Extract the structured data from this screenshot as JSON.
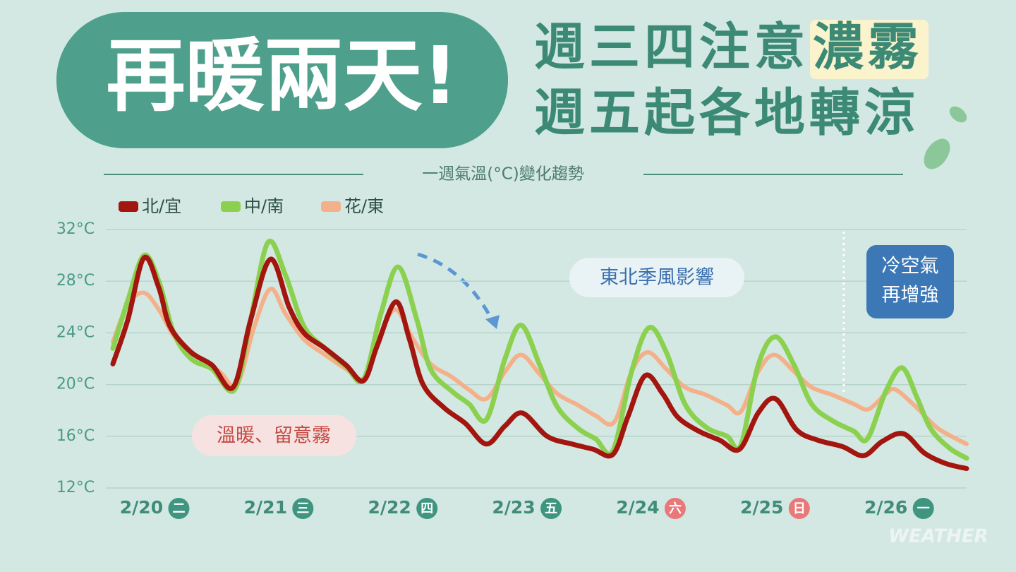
{
  "chart_data": {
    "type": "line",
    "title": "再暖兩天!",
    "headline_line1": "週三四注意",
    "headline_highlight": "濃霧",
    "headline_line2": "週五起各地轉涼",
    "subtitle": "一週氣溫(°C)變化趨勢",
    "xlim": [
      -0.23,
      6.65
    ],
    "xticks": [
      {
        "value": 0,
        "label": "2/20"
      },
      {
        "value": 1,
        "label": "2/21"
      },
      {
        "value": 2,
        "label": "2/22"
      },
      {
        "value": 3,
        "label": "2/23"
      },
      {
        "value": 4,
        "label": "2/24"
      },
      {
        "value": 5,
        "label": "2/25"
      },
      {
        "value": 6,
        "label": "2/26"
      }
    ],
    "x_badges": [
      {
        "text": "二",
        "color": "#3f9580"
      },
      {
        "text": "三",
        "color": "#3f9580"
      },
      {
        "text": "四",
        "color": "#3f9580"
      },
      {
        "text": "五",
        "color": "#3f9580"
      },
      {
        "text": "六",
        "color": "#e8787a"
      },
      {
        "text": "日",
        "color": "#e8787a"
      },
      {
        "text": "一",
        "color": "#3f9580"
      }
    ],
    "ylim": [
      12,
      32
    ],
    "yticks": [
      {
        "value": 12,
        "label": "12°C"
      },
      {
        "value": 16,
        "label": "16°C"
      },
      {
        "value": 20,
        "label": "20°C"
      },
      {
        "value": 24,
        "label": "24°C"
      },
      {
        "value": 28,
        "label": "28°C"
      },
      {
        "value": 32,
        "label": "32°C"
      }
    ],
    "grid": true,
    "divider_x": 5.66,
    "series": [
      {
        "name": "北/宜",
        "color": "#a3150f",
        "x": [
          -0.23,
          -0.11,
          0.02,
          0.14,
          0.23,
          0.4,
          0.57,
          0.74,
          0.88,
          1.04,
          1.19,
          1.31,
          1.48,
          1.65,
          1.79,
          1.9,
          2.05,
          2.16,
          2.27,
          2.44,
          2.61,
          2.78,
          2.93,
          3.07,
          3.27,
          3.47,
          3.64,
          3.8,
          3.92,
          4.06,
          4.2,
          4.32,
          4.49,
          4.66,
          4.82,
          4.97,
          5.11,
          5.28,
          5.45,
          5.65,
          5.82,
          5.97,
          6.14,
          6.31,
          6.48,
          6.65
        ],
        "values": [
          21.6,
          25,
          29.8,
          27.5,
          24.5,
          22.5,
          21.5,
          19.8,
          25,
          29.7,
          26,
          24,
          22.8,
          21.5,
          20.3,
          23,
          26.4,
          23.5,
          20,
          18.2,
          17,
          15.4,
          16.8,
          17.8,
          16,
          15.4,
          15,
          14.6,
          17.5,
          20.7,
          19.3,
          17.5,
          16.4,
          15.7,
          15,
          17.8,
          18.9,
          16.5,
          15.7,
          15.2,
          14.5,
          15.6,
          16.2,
          14.7,
          13.9,
          13.5
        ]
      },
      {
        "name": "中/南",
        "color": "#8bd14f",
        "x": [
          -0.23,
          -0.11,
          0.02,
          0.14,
          0.26,
          0.4,
          0.57,
          0.75,
          0.88,
          1.02,
          1.16,
          1.31,
          1.48,
          1.65,
          1.79,
          1.93,
          2.07,
          2.22,
          2.33,
          2.5,
          2.64,
          2.78,
          2.93,
          3.06,
          3.21,
          3.35,
          3.52,
          3.66,
          3.8,
          3.95,
          4.09,
          4.23,
          4.38,
          4.55,
          4.72,
          4.83,
          4.97,
          5.11,
          5.26,
          5.4,
          5.57,
          5.74,
          5.85,
          6.0,
          6.13,
          6.25,
          6.36,
          6.51,
          6.65
        ],
        "values": [
          22.8,
          26.5,
          30,
          28,
          24,
          22,
          21.2,
          19.6,
          25,
          31,
          28.5,
          24.5,
          22.8,
          21.4,
          20.4,
          25.5,
          29.1,
          25,
          21.2,
          19.5,
          18.5,
          17.3,
          22,
          24.6,
          21.5,
          18.3,
          16.6,
          15.8,
          14.9,
          21,
          24.4,
          22.5,
          18.5,
          16.7,
          16,
          15.3,
          21.5,
          23.7,
          21.5,
          18.5,
          17.2,
          16.4,
          15.8,
          19.5,
          21.3,
          19,
          16.6,
          15.1,
          14.3
        ]
      },
      {
        "name": "花/東",
        "color": "#f4b08a",
        "x": [
          -0.23,
          -0.11,
          0.02,
          0.14,
          0.28,
          0.45,
          0.63,
          0.77,
          0.91,
          1.04,
          1.16,
          1.31,
          1.48,
          1.65,
          1.79,
          1.93,
          2.05,
          2.19,
          2.33,
          2.5,
          2.64,
          2.78,
          2.93,
          3.06,
          3.21,
          3.35,
          3.52,
          3.66,
          3.81,
          3.95,
          4.08,
          4.23,
          4.38,
          4.55,
          4.72,
          4.83,
          4.97,
          5.1,
          5.26,
          5.4,
          5.57,
          5.74,
          5.86,
          6.0,
          6.08,
          6.25,
          6.42,
          6.65
        ],
        "values": [
          23.3,
          26.2,
          27.1,
          25.8,
          23.5,
          22.2,
          21,
          20,
          24.5,
          27.4,
          25.5,
          23.5,
          22.3,
          21.2,
          20.5,
          24,
          25.8,
          23.5,
          21.6,
          20.6,
          19.6,
          18.9,
          21,
          22.3,
          20.8,
          19.3,
          18.4,
          17.6,
          17.1,
          21,
          22.5,
          21.2,
          19.8,
          19.2,
          18.4,
          17.9,
          21,
          22.3,
          21,
          19.8,
          19.2,
          18.5,
          18.1,
          19.3,
          19.6,
          18.2,
          16.6,
          15.4
        ]
      }
    ],
    "annotations": [
      {
        "lines": [
          "東北季風影響"
        ]
      },
      {
        "lines": [
          "冷空氣",
          "再增強"
        ]
      },
      {
        "lines": [
          "溫暖、留意霧"
        ]
      }
    ],
    "watermark": "WEATHER"
  }
}
